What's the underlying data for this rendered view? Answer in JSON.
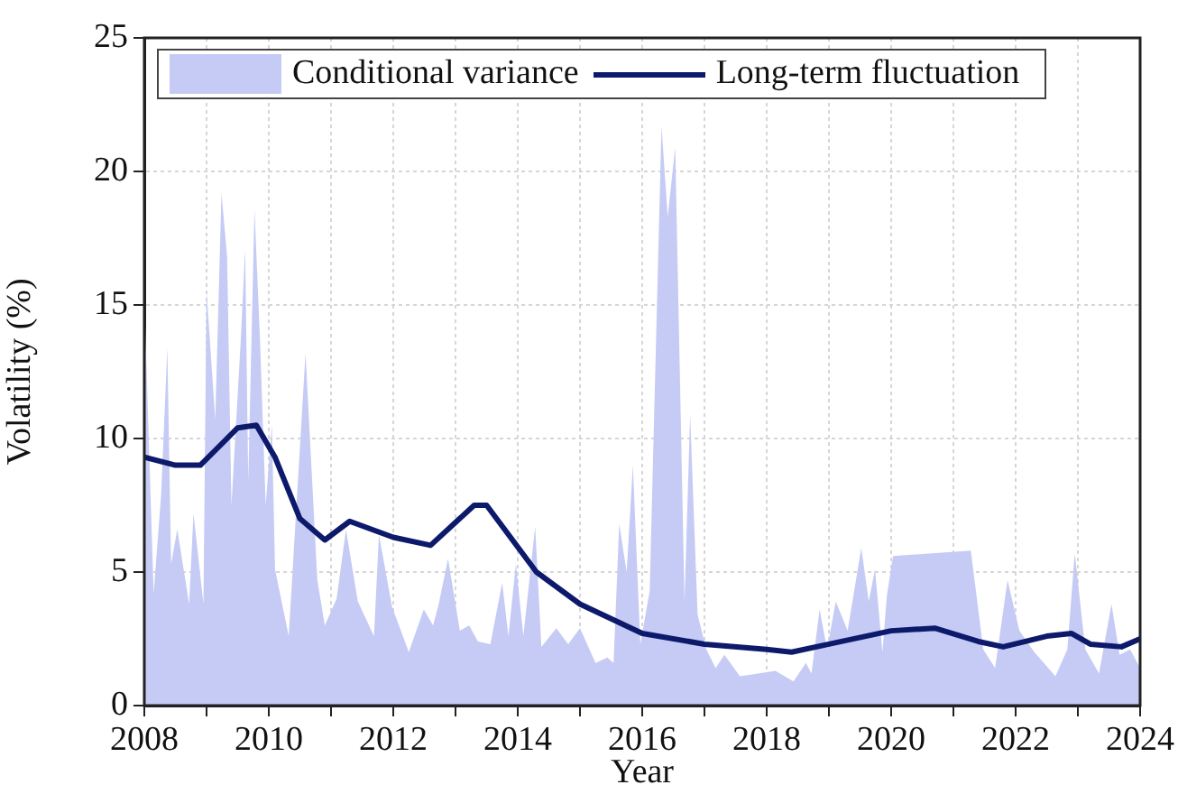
{
  "chart_data": {
    "type": "area",
    "xlabel": "Year",
    "ylabel": "Volatility (%)",
    "xlim": [
      2008,
      2024
    ],
    "ylim": [
      0,
      25
    ],
    "xticks": [
      2008,
      {
        "value": 2009,
        "label": null
      },
      2010,
      {
        "value": 2011,
        "label": null
      },
      2012,
      {
        "value": 2013,
        "label": null
      },
      2014,
      {
        "value": 2015,
        "label": null
      },
      2016,
      {
        "value": 2017,
        "label": null
      },
      2018,
      {
        "value": 2019,
        "label": null
      },
      2020,
      {
        "value": 2021,
        "label": null
      },
      2022,
      {
        "value": 2023,
        "label": null
      },
      2024
    ],
    "yticks": [
      0,
      5,
      10,
      15,
      20,
      25
    ],
    "grid": true,
    "legend": "top",
    "marker": "none",
    "series": [
      {
        "name": "Conditional variance",
        "type": "area",
        "color": "#c5cbf5",
        "x": [
          2008.0,
          2008.15,
          2008.27,
          2008.37,
          2008.43,
          2008.53,
          2008.72,
          2008.79,
          2008.95,
          2009.0,
          2009.14,
          2009.24,
          2009.33,
          2009.4,
          2009.55,
          2009.62,
          2009.67,
          2009.77,
          2009.86,
          2009.95,
          2010.05,
          2010.1,
          2010.32,
          2010.59,
          2010.78,
          2010.9,
          2011.09,
          2011.24,
          2011.43,
          2011.69,
          2011.77,
          2011.98,
          2012.25,
          2012.49,
          2012.64,
          2012.73,
          2012.88,
          2013.07,
          2013.22,
          2013.36,
          2013.56,
          2013.75,
          2013.85,
          2013.97,
          2014.09,
          2014.28,
          2014.38,
          2014.62,
          2014.81,
          2015.0,
          2015.25,
          2015.44,
          2015.54,
          2015.63,
          2015.75,
          2015.85,
          2015.97,
          2016.12,
          2016.31,
          2016.41,
          2016.53,
          2016.68,
          2016.77,
          2016.89,
          2017.03,
          2017.18,
          2017.32,
          2017.57,
          2017.86,
          2018.14,
          2018.43,
          2018.63,
          2018.72,
          2018.85,
          2018.97,
          2019.11,
          2019.3,
          2019.52,
          2019.64,
          2019.74,
          2019.86,
          2019.93,
          2020.03,
          2021.28,
          2021.48,
          2021.67,
          2021.87,
          2022.06,
          2022.3,
          2022.64,
          2022.83,
          2022.95,
          2023.12,
          2023.34,
          2023.54,
          2023.67,
          2023.84,
          2024.0
        ],
        "values": [
          15.3,
          4.2,
          7.9,
          13.4,
          5.3,
          6.6,
          3.8,
          7.2,
          3.8,
          15.5,
          10.7,
          19.2,
          16.8,
          7.5,
          13.7,
          17.1,
          8.4,
          18.6,
          13.6,
          7.5,
          10.5,
          5.1,
          2.6,
          13.2,
          4.7,
          3.0,
          4.0,
          6.6,
          3.9,
          2.6,
          6.4,
          3.7,
          2.0,
          3.6,
          3.0,
          3.8,
          5.5,
          2.8,
          3.0,
          2.4,
          2.3,
          4.6,
          2.6,
          5.3,
          2.6,
          6.7,
          2.2,
          2.9,
          2.3,
          2.9,
          1.6,
          1.8,
          1.6,
          6.8,
          5.0,
          9.0,
          2.3,
          4.3,
          21.7,
          18.3,
          20.9,
          3.9,
          10.9,
          3.4,
          2.1,
          1.4,
          1.9,
          1.1,
          1.2,
          1.3,
          0.9,
          1.6,
          1.2,
          3.6,
          2.1,
          3.9,
          2.8,
          5.9,
          3.9,
          5.1,
          2.0,
          4.1,
          5.6,
          5.8,
          2.1,
          1.4,
          4.7,
          2.8,
          2.0,
          1.1,
          2.1,
          5.7,
          2.1,
          1.2,
          3.8,
          1.9,
          2.1,
          1.4
        ]
      },
      {
        "name": "Long-term fluctuation",
        "type": "line",
        "color": "#0d1a6b",
        "x": [
          2008.0,
          2008.5,
          2008.9,
          2009.5,
          2009.8,
          2010.1,
          2010.5,
          2010.9,
          2011.3,
          2012.0,
          2012.6,
          2013.3,
          2013.5,
          2014.3,
          2015.0,
          2016.0,
          2017.0,
          2018.0,
          2018.4,
          2019.0,
          2020.0,
          2020.7,
          2021.4,
          2021.8,
          2022.5,
          2022.9,
          2023.2,
          2023.7,
          2024.0
        ],
        "values": [
          9.3,
          9.0,
          9.0,
          10.4,
          10.5,
          9.3,
          7.0,
          6.2,
          6.9,
          6.3,
          6.0,
          7.5,
          7.5,
          5.0,
          3.8,
          2.7,
          2.3,
          2.1,
          2.0,
          2.3,
          2.8,
          2.9,
          2.4,
          2.2,
          2.6,
          2.7,
          2.3,
          2.2,
          2.5
        ]
      }
    ]
  }
}
